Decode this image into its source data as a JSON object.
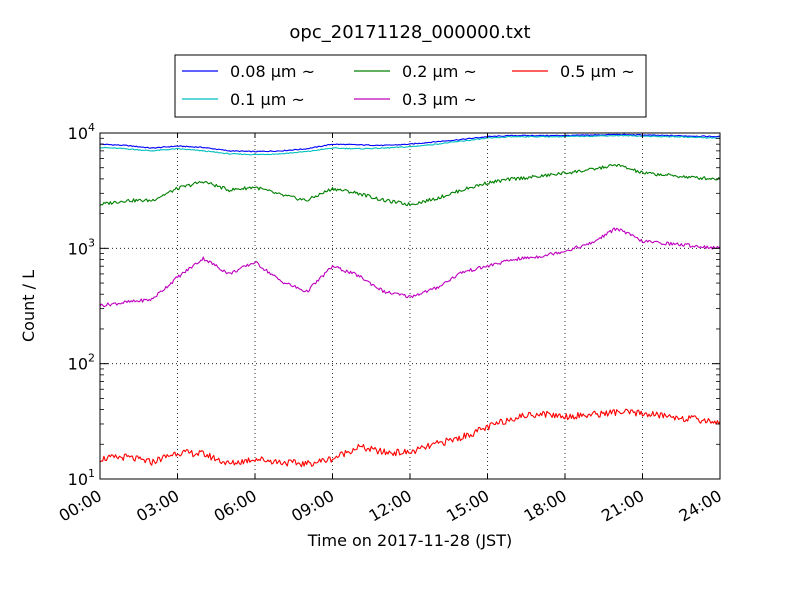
{
  "chart_data": {
    "type": "line",
    "title": "opc_20171128_000000.txt",
    "xlabel": "Time on 2017-11-28 (JST)",
    "ylabel": "Count / L",
    "xlim": [
      0,
      24
    ],
    "ylim": [
      10,
      10000
    ],
    "yscale": "log",
    "grid": true,
    "legend_position": "top-center",
    "x_ticks": [
      {
        "value": 0,
        "label": "00:00"
      },
      {
        "value": 3,
        "label": "03:00"
      },
      {
        "value": 6,
        "label": "06:00"
      },
      {
        "value": 9,
        "label": "09:00"
      },
      {
        "value": 12,
        "label": "12:00"
      },
      {
        "value": 15,
        "label": "15:00"
      },
      {
        "value": 18,
        "label": "18:00"
      },
      {
        "value": 21,
        "label": "21:00"
      },
      {
        "value": 24,
        "label": "24:00"
      }
    ],
    "y_ticks": [
      {
        "value": 10,
        "base": "10",
        "exp": "1"
      },
      {
        "value": 100,
        "base": "10",
        "exp": "2"
      },
      {
        "value": 1000,
        "base": "10",
        "exp": "3"
      },
      {
        "value": 10000,
        "base": "10",
        "exp": "4"
      }
    ],
    "x": [
      0,
      1,
      2,
      3,
      4,
      5,
      6,
      7,
      8,
      9,
      10,
      11,
      12,
      13,
      14,
      15,
      16,
      17,
      18,
      19,
      20,
      21,
      22,
      23,
      24
    ],
    "series": [
      {
        "name": "0.08 μm ~",
        "color": "#0000ff",
        "values": [
          8000,
          7800,
          7400,
          7700,
          7500,
          7000,
          6900,
          7000,
          7300,
          8000,
          7900,
          7800,
          8000,
          8400,
          8800,
          9300,
          9500,
          9500,
          9500,
          9600,
          9700,
          9600,
          9500,
          9400,
          9300
        ]
      },
      {
        "name": "0.1 μm ~",
        "color": "#00bfbf",
        "values": [
          7500,
          7300,
          7000,
          7300,
          7000,
          6600,
          6500,
          6600,
          6900,
          7400,
          7300,
          7400,
          7600,
          8000,
          8500,
          9000,
          9300,
          9300,
          9300,
          9400,
          9500,
          9400,
          9300,
          9200,
          9000
        ]
      },
      {
        "name": "0.2 μm ~",
        "color": "#008000",
        "values": [
          2400,
          2600,
          2600,
          3300,
          3800,
          3200,
          3400,
          2900,
          2600,
          3300,
          3000,
          2600,
          2400,
          2700,
          3200,
          3700,
          4000,
          4200,
          4500,
          4800,
          5300,
          4500,
          4300,
          4100,
          4000
        ]
      },
      {
        "name": "0.3 μm ~",
        "color": "#bf00bf",
        "values": [
          320,
          340,
          360,
          560,
          820,
          600,
          760,
          520,
          420,
          700,
          580,
          420,
          380,
          450,
          620,
          700,
          800,
          850,
          950,
          1100,
          1500,
          1150,
          1100,
          1050,
          1000
        ]
      },
      {
        "name": "0.5 μm ~",
        "color": "#ff0000",
        "values": [
          15,
          15.5,
          14,
          17,
          16.5,
          13.5,
          15,
          14,
          13.5,
          15,
          19,
          17,
          17,
          20,
          23,
          28,
          34,
          37,
          35,
          36,
          38,
          37,
          35,
          33,
          31
        ]
      }
    ]
  }
}
